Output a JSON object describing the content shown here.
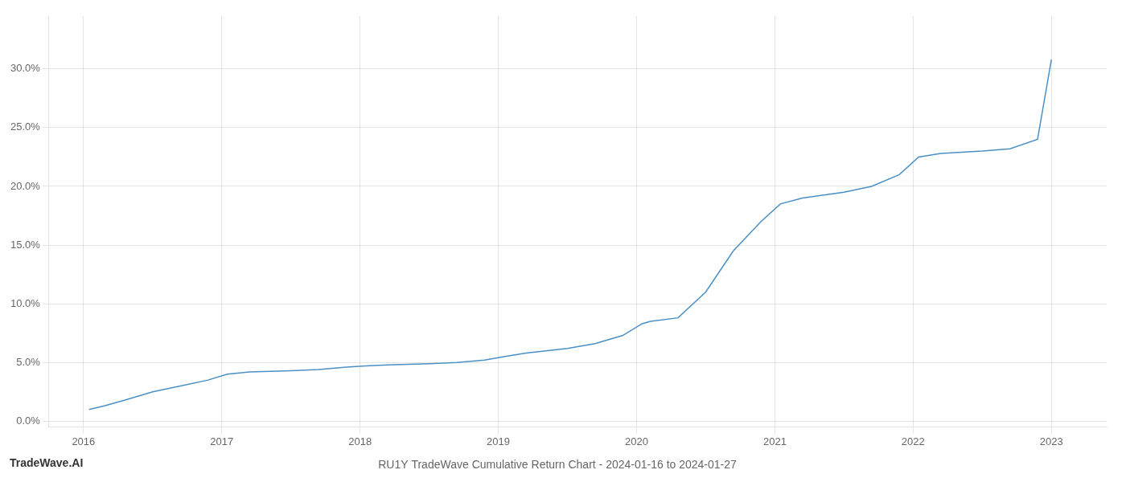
{
  "chart_data": {
    "type": "line",
    "title": "RU1Y TradeWave Cumulative Return Chart - 2024-01-16 to 2024-01-27",
    "annotations": [
      "TradeWave.AI"
    ],
    "x": [
      2016.04,
      2016.15,
      2016.3,
      2016.5,
      2016.7,
      2016.9,
      2017.04,
      2017.2,
      2017.5,
      2017.7,
      2017.9,
      2018.04,
      2018.2,
      2018.5,
      2018.7,
      2018.9,
      2019.04,
      2019.2,
      2019.5,
      2019.7,
      2019.9,
      2020.04,
      2020.1,
      2020.3,
      2020.5,
      2020.7,
      2020.9,
      2021.04,
      2021.2,
      2021.5,
      2021.7,
      2021.9,
      2022.04,
      2022.2,
      2022.5,
      2022.7,
      2022.9,
      2023.0
    ],
    "values": [
      0.01,
      0.013,
      0.018,
      0.025,
      0.03,
      0.035,
      0.04,
      0.042,
      0.043,
      0.044,
      0.046,
      0.047,
      0.048,
      0.049,
      0.05,
      0.052,
      0.055,
      0.058,
      0.062,
      0.066,
      0.073,
      0.083,
      0.085,
      0.088,
      0.11,
      0.145,
      0.17,
      0.185,
      0.19,
      0.195,
      0.2,
      0.21,
      0.225,
      0.228,
      0.23,
      0.232,
      0.24,
      0.308
    ],
    "color": "#4a90c4",
    "xlim": [
      2015.75,
      2023.4
    ],
    "ylim": [
      -0.005,
      0.345
    ],
    "xticks": [
      2016,
      2017,
      2018,
      2019,
      2020,
      2021,
      2022,
      2023
    ],
    "yticks": [
      {
        "value": 0.0,
        "label": "0.0%"
      },
      {
        "value": 0.05,
        "label": "5.0%"
      },
      {
        "value": 0.1,
        "label": "10.0%"
      },
      {
        "value": 0.15,
        "label": "15.0%"
      },
      {
        "value": 0.2,
        "label": "20.0%"
      },
      {
        "value": 0.25,
        "label": "25.0%"
      },
      {
        "value": 0.3,
        "label": "30.0%"
      }
    ],
    "grid": true
  }
}
